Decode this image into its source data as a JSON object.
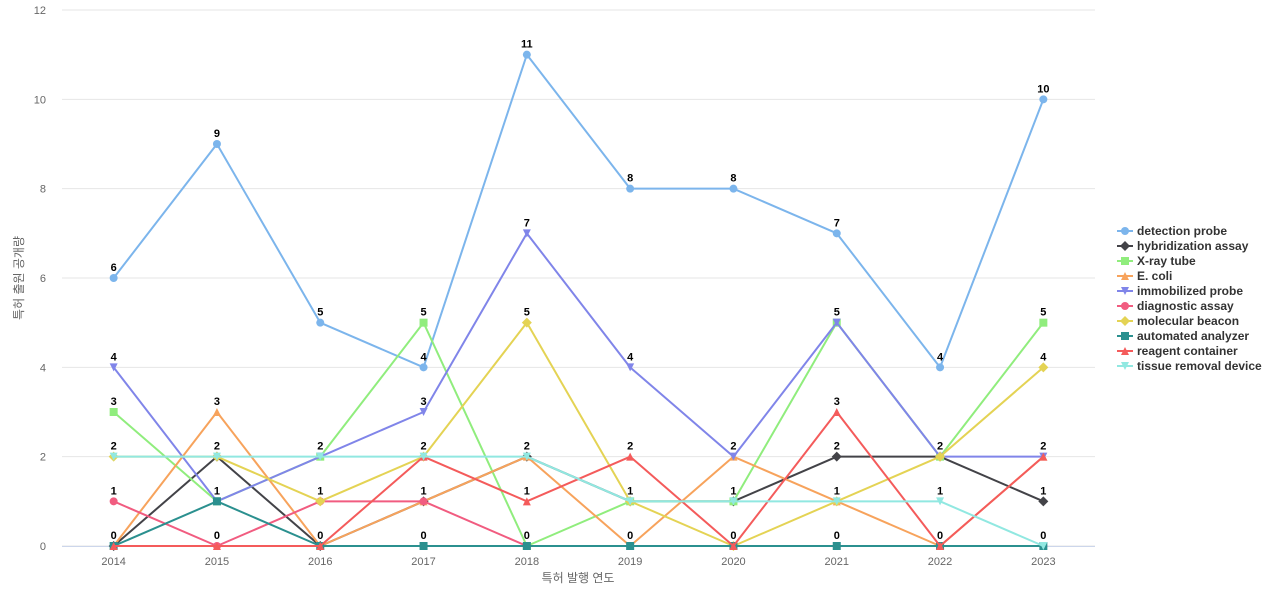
{
  "chart_data": {
    "type": "line",
    "title": "",
    "xlabel": "특허 발행 연도",
    "ylabel": "특허 출원 공개량",
    "categories": [
      "2014",
      "2015",
      "2016",
      "2017",
      "2018",
      "2019",
      "2020",
      "2021",
      "2022",
      "2023"
    ],
    "ylim": [
      0,
      12
    ],
    "yticks": [
      0,
      2,
      4,
      6,
      8,
      10,
      12
    ],
    "grid": true,
    "legend_position": "right",
    "series": [
      {
        "name": "detection probe",
        "color": "#7cb5ec",
        "marker": "circle",
        "values": [
          6,
          9,
          5,
          4,
          11,
          8,
          8,
          7,
          4,
          10
        ]
      },
      {
        "name": "hybridization assay",
        "color": "#434348",
        "marker": "diamond",
        "values": [
          0,
          2,
          0,
          1,
          2,
          1,
          1,
          2,
          2,
          1
        ]
      },
      {
        "name": "X-ray tube",
        "color": "#90ed7d",
        "marker": "square",
        "values": [
          3,
          1,
          2,
          5,
          0,
          1,
          1,
          5,
          2,
          5
        ]
      },
      {
        "name": "E. coli",
        "color": "#f7a35c",
        "marker": "triangle",
        "values": [
          0,
          3,
          0,
          1,
          2,
          0,
          2,
          1,
          0,
          2
        ]
      },
      {
        "name": "immobilized probe",
        "color": "#8085e9",
        "marker": "triangle-down",
        "values": [
          4,
          1,
          2,
          3,
          7,
          4,
          2,
          5,
          2,
          2
        ]
      },
      {
        "name": "diagnostic assay",
        "color": "#f15c80",
        "marker": "circle",
        "values": [
          1,
          0,
          1,
          1,
          0,
          0,
          0,
          0,
          0,
          0
        ]
      },
      {
        "name": "molecular beacon",
        "color": "#e4d354",
        "marker": "diamond",
        "values": [
          2,
          2,
          1,
          2,
          5,
          1,
          0,
          1,
          2,
          4
        ]
      },
      {
        "name": "automated analyzer",
        "color": "#2b908f",
        "marker": "square",
        "values": [
          0,
          1,
          0,
          0,
          0,
          0,
          0,
          0,
          0,
          0
        ]
      },
      {
        "name": "reagent container",
        "color": "#f45b5b",
        "marker": "triangle",
        "values": [
          0,
          0,
          0,
          2,
          1,
          2,
          0,
          3,
          0,
          2
        ]
      },
      {
        "name": "tissue removal device",
        "color": "#91e8e1",
        "marker": "triangle-down",
        "values": [
          2,
          2,
          2,
          2,
          2,
          1,
          1,
          1,
          1,
          0
        ]
      }
    ]
  }
}
